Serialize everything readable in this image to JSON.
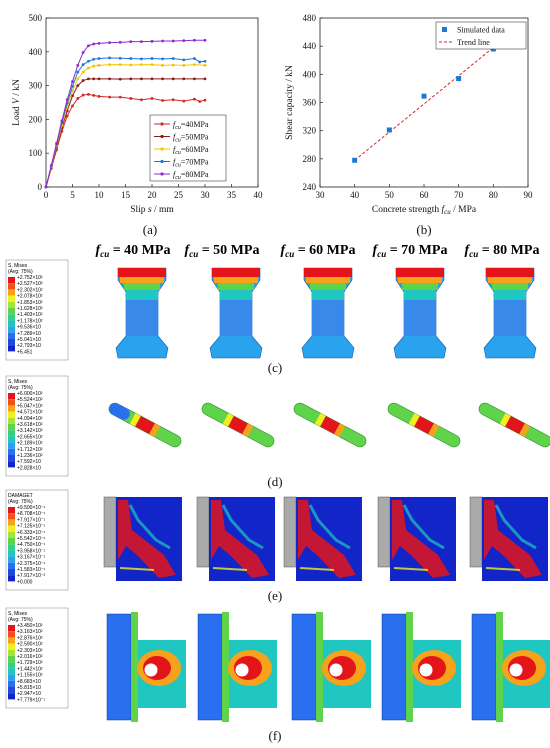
{
  "chart_data": [
    {
      "panel": "(a)",
      "type": "line",
      "xlabel_pre": "Slip ",
      "xlabel_var": "s",
      "xlabel_post": " / mm",
      "ylabel_pre": "Load ",
      "ylabel_var": "V",
      "ylabel_post": " / kN",
      "xlim": [
        0,
        40
      ],
      "ylim": [
        0,
        500
      ],
      "xticks": [
        "0",
        "5",
        "10",
        "15",
        "20",
        "25",
        "30",
        "35",
        "40"
      ],
      "yticks": [
        "0",
        "100",
        "200",
        "300",
        "400",
        "500"
      ],
      "legend_position": "center-right",
      "series": [
        {
          "name": "fcu=40MPa",
          "sub": "cu",
          "value": "=40MPa",
          "color": "#d62728",
          "x": [
            0,
            1,
            2,
            3,
            4,
            5,
            6,
            7,
            8,
            9,
            10,
            12,
            14,
            16,
            18,
            20,
            22,
            24,
            26,
            28,
            29,
            30
          ],
          "y": [
            0,
            55,
            110,
            165,
            210,
            240,
            262,
            272,
            274,
            271,
            268,
            266,
            266,
            262,
            258,
            262,
            256,
            258,
            254,
            260,
            253,
            257
          ]
        },
        {
          "name": "fcu=50MPa",
          "sub": "cu",
          "value": "=50MPa",
          "color": "#8b1a1a",
          "x": [
            0,
            1,
            2,
            3,
            4,
            5,
            6,
            7,
            8,
            9,
            10,
            12,
            14,
            16,
            18,
            20,
            22,
            24,
            26,
            28,
            30
          ],
          "y": [
            0,
            58,
            118,
            175,
            225,
            270,
            300,
            315,
            320,
            320,
            320,
            320,
            319,
            320,
            320,
            320,
            320,
            320,
            320,
            320,
            320
          ]
        },
        {
          "name": "fcu=60MPa",
          "sub": "cu",
          "value": "=60MPa",
          "color": "#f5c400",
          "x": [
            0,
            1,
            2,
            3,
            4,
            5,
            6,
            7,
            8,
            9,
            10,
            12,
            14,
            16,
            18,
            20,
            22,
            24,
            26,
            28,
            30
          ],
          "y": [
            0,
            60,
            122,
            182,
            238,
            285,
            320,
            340,
            352,
            358,
            360,
            362,
            362,
            361,
            362,
            362,
            360,
            361,
            360,
            362,
            360
          ]
        },
        {
          "name": "fcu=70MPa",
          "sub": "cu",
          "value": "=70MPa",
          "color": "#1f77d4",
          "x": [
            0,
            1,
            2,
            3,
            4,
            5,
            6,
            7,
            8,
            9,
            10,
            12,
            14,
            16,
            18,
            20,
            22,
            24,
            26,
            28,
            29,
            30
          ],
          "y": [
            0,
            62,
            126,
            190,
            248,
            298,
            340,
            362,
            372,
            378,
            380,
            382,
            381,
            380,
            379,
            380,
            379,
            380,
            376,
            380,
            370,
            372
          ]
        },
        {
          "name": "fcu=80MPa",
          "sub": "cu",
          "value": "=80MPa",
          "color": "#8e2bd0",
          "x": [
            0,
            1,
            2,
            3,
            4,
            5,
            6,
            7,
            8,
            9,
            10,
            12,
            14,
            16,
            18,
            20,
            22,
            24,
            26,
            28,
            30
          ],
          "y": [
            0,
            64,
            130,
            196,
            258,
            312,
            360,
            398,
            418,
            423,
            425,
            427,
            428,
            430,
            430,
            431,
            432,
            432,
            433,
            434,
            434
          ]
        }
      ]
    },
    {
      "panel": "(b)",
      "type": "scatter",
      "xlabel_pre": "Concrete strength ",
      "xlabel_var": "f",
      "xlabel_sub": "cu",
      "xlabel_post": " / MPa",
      "ylabel": "Shear capacity / kN",
      "xlim": [
        30,
        90
      ],
      "ylim": [
        240,
        480
      ],
      "xticks": [
        "30",
        "40",
        "50",
        "60",
        "70",
        "80",
        "90"
      ],
      "yticks": [
        "240",
        "280",
        "320",
        "360",
        "400",
        "440",
        "480"
      ],
      "legend_position": "top-left",
      "series": [
        {
          "name": "Simulated data",
          "color": "#1f77d4",
          "x": [
            40,
            50,
            60,
            70,
            80
          ],
          "y": [
            278,
            321,
            369,
            394,
            436
          ]
        },
        {
          "name": "Trend line",
          "color": "#d62728",
          "style": "dashed",
          "x": [
            40,
            80
          ],
          "y": [
            278,
            438
          ]
        }
      ]
    }
  ],
  "panels": {
    "c": "(c)",
    "d": "(d)",
    "e": "(e)",
    "f": "(f)"
  },
  "headers": [
    {
      "var": "f",
      "sub": "cu",
      "text": " = 40 MPa"
    },
    {
      "var": "f",
      "sub": "cu",
      "text": " = 50 MPa"
    },
    {
      "var": "f",
      "sub": "cu",
      "text": " = 60 MPa"
    },
    {
      "var": "f",
      "sub": "cu",
      "text": " = 70 MPa"
    },
    {
      "var": "f",
      "sub": "cu",
      "text": " = 80 MPa"
    }
  ],
  "colorbars": {
    "c": {
      "title1": "S, Mises",
      "title2": "(Avg: 75%)",
      "values": [
        "+2.752×10²",
        "+2.527×10²",
        "+2.302×10²",
        "+2.078×10²",
        "+1.853×10²",
        "+1.628×10²",
        "+1.403×10²",
        "+1.178×10²",
        "+9.536×10",
        "+7.289×10",
        "+5.041×10",
        "+2.793×10",
        "+5.451"
      ]
    },
    "d": {
      "title1": "S, Mises",
      "title2": "(Avg: 75%)",
      "values": [
        "+6.000×10²",
        "+5.524×10²",
        "+5.047×10²",
        "+4.571×10²",
        "+4.094×10²",
        "+3.618×10²",
        "+3.142×10²",
        "+2.665×10²",
        "+2.189×10²",
        "+1.712×10²",
        "+1.236×10²",
        "+7.592×10",
        "+2.828×10"
      ]
    },
    "e": {
      "title1": "DAMAGET",
      "title2": "(Avg: 75%)",
      "values": [
        "+9.500×10⁻¹",
        "+8.708×10⁻¹",
        "+7.917×10⁻¹",
        "+7.125×10⁻¹",
        "+6.333×10⁻¹",
        "+5.542×10⁻¹",
        "+4.750×10⁻¹",
        "+3.958×10⁻¹",
        "+3.167×10⁻¹",
        "+2.375×10⁻¹",
        "+1.583×10⁻¹",
        "+7.917×10⁻²",
        "+0.000"
      ]
    },
    "f": {
      "title1": "S, Mises",
      "title2": "(Avg: 75%)",
      "values": [
        "+3.450×10²",
        "+3.163×10²",
        "+2.876×10²",
        "+2.590×10²",
        "+2.303×10²",
        "+2.016×10²",
        "+1.729×10²",
        "+1.442×10²",
        "+1.155×10²",
        "+8.683×10",
        "+5.815×10",
        "+2.947×10",
        "+7.779×10⁻¹"
      ]
    }
  }
}
